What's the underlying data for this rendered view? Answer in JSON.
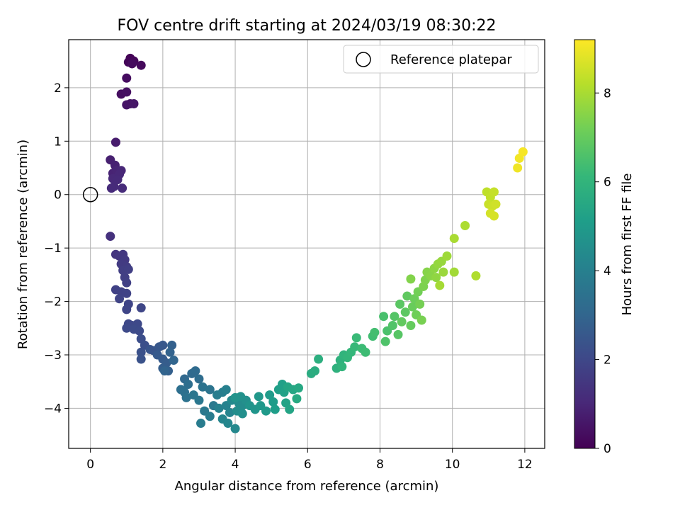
{
  "chart_data": {
    "type": "scatter",
    "title": "FOV centre drift starting at 2024/03/19 08:30:22",
    "xlabel": "Angular distance from reference (arcmin)",
    "ylabel": "Rotation from reference (arcmin)",
    "xlim": [
      -0.6,
      12.55
    ],
    "ylim": [
      -4.75,
      2.9
    ],
    "x_ticks": [
      0,
      2,
      4,
      6,
      8,
      10,
      12
    ],
    "x_tick_labels": [
      "0",
      "2",
      "4",
      "6",
      "8",
      "10",
      "12"
    ],
    "y_ticks": [
      -4,
      -3,
      -2,
      -1,
      0,
      1,
      2
    ],
    "y_tick_labels": [
      "−4",
      "−3",
      "−2",
      "−1",
      "0",
      "1",
      "2"
    ],
    "grid": true,
    "legend": {
      "position": "top-right",
      "entries": [
        "Reference platepar"
      ]
    },
    "reference_point": {
      "x": 0,
      "y": 0,
      "marker": "open-circle",
      "color": "#000000"
    },
    "colorbar": {
      "label": "Hours from first FF file",
      "range": [
        0,
        9.2
      ],
      "ticks": [
        0,
        2,
        4,
        6,
        8
      ],
      "tick_labels": [
        "0",
        "2",
        "4",
        "6",
        "8"
      ],
      "colormap": "viridis"
    },
    "colormap_stops": [
      "#440154",
      "#482878",
      "#3e4989",
      "#31688e",
      "#26828e",
      "#1f9e89",
      "#35b779",
      "#6ece58",
      "#b5de2b",
      "#fde725"
    ],
    "series": [
      {
        "marker": "filled-circle",
        "points": [
          [
            1.1,
            2.55,
            0.05
          ],
          [
            1.05,
            2.48,
            0.1
          ],
          [
            1.2,
            2.5,
            0.15
          ],
          [
            1.4,
            2.42,
            0.2
          ],
          [
            1.15,
            2.45,
            0.25
          ],
          [
            1.0,
            2.18,
            0.3
          ],
          [
            0.85,
            1.88,
            0.35
          ],
          [
            1.0,
            1.92,
            0.4
          ],
          [
            1.1,
            1.7,
            0.45
          ],
          [
            1.0,
            1.68,
            0.5
          ],
          [
            1.2,
            1.7,
            0.55
          ],
          [
            0.7,
            0.98,
            0.7
          ],
          [
            0.55,
            0.65,
            0.8
          ],
          [
            0.68,
            0.55,
            0.85
          ],
          [
            0.62,
            0.4,
            0.9
          ],
          [
            0.72,
            0.45,
            0.95
          ],
          [
            0.85,
            0.45,
            1.0
          ],
          [
            0.8,
            0.38,
            1.02
          ],
          [
            0.62,
            0.3,
            1.05
          ],
          [
            0.75,
            0.28,
            1.08
          ],
          [
            0.65,
            0.15,
            1.1
          ],
          [
            0.58,
            0.12,
            1.12
          ],
          [
            0.88,
            0.12,
            1.15
          ],
          [
            0.55,
            -0.78,
            1.3
          ],
          [
            0.7,
            -1.12,
            1.4
          ],
          [
            0.8,
            -1.15,
            1.45
          ],
          [
            0.9,
            -1.12,
            1.5
          ],
          [
            0.95,
            -1.22,
            1.55
          ],
          [
            0.85,
            -1.3,
            1.6
          ],
          [
            1.0,
            -1.35,
            1.65
          ],
          [
            0.9,
            -1.42,
            1.7
          ],
          [
            1.05,
            -1.4,
            1.72
          ],
          [
            0.95,
            -1.55,
            1.75
          ],
          [
            1.0,
            -1.65,
            1.78
          ],
          [
            0.7,
            -1.78,
            1.8
          ],
          [
            0.85,
            -1.82,
            1.82
          ],
          [
            1.0,
            -1.85,
            1.85
          ],
          [
            0.8,
            -1.95,
            1.88
          ],
          [
            1.05,
            -2.05,
            1.9
          ],
          [
            1.0,
            -2.15,
            1.92
          ],
          [
            1.4,
            -2.12,
            1.95
          ],
          [
            1.05,
            -2.42,
            2.0
          ],
          [
            1.15,
            -2.45,
            2.02
          ],
          [
            1.3,
            -2.42,
            2.05
          ],
          [
            1.0,
            -2.5,
            2.08
          ],
          [
            1.2,
            -2.52,
            2.1
          ],
          [
            1.35,
            -2.55,
            2.12
          ],
          [
            1.4,
            -2.7,
            2.2
          ],
          [
            1.5,
            -2.82,
            2.25
          ],
          [
            1.4,
            -2.95,
            2.3
          ],
          [
            1.4,
            -3.08,
            2.35
          ],
          [
            1.65,
            -2.9,
            2.4
          ],
          [
            1.75,
            -2.92,
            2.45
          ],
          [
            1.9,
            -2.85,
            2.5
          ],
          [
            2.0,
            -2.82,
            2.55
          ],
          [
            1.85,
            -3.0,
            2.6
          ],
          [
            2.0,
            -3.08,
            2.65
          ],
          [
            2.1,
            -3.15,
            2.7
          ],
          [
            2.0,
            -3.25,
            2.75
          ],
          [
            2.15,
            -3.3,
            2.8
          ],
          [
            2.25,
            -2.82,
            2.85
          ],
          [
            2.2,
            -2.95,
            2.9
          ],
          [
            2.05,
            -3.3,
            2.95
          ],
          [
            2.3,
            -3.1,
            3.0
          ],
          [
            2.6,
            -3.45,
            3.1
          ],
          [
            2.8,
            -3.35,
            3.15
          ],
          [
            2.9,
            -3.3,
            3.2
          ],
          [
            3.0,
            -3.45,
            3.25
          ],
          [
            2.7,
            -3.55,
            3.3
          ],
          [
            2.5,
            -3.65,
            3.35
          ],
          [
            2.6,
            -3.7,
            3.4
          ],
          [
            2.65,
            -3.8,
            3.45
          ],
          [
            3.1,
            -3.6,
            3.5
          ],
          [
            3.3,
            -3.65,
            3.55
          ],
          [
            2.85,
            -3.75,
            3.6
          ],
          [
            3.0,
            -3.85,
            3.65
          ],
          [
            3.15,
            -4.05,
            3.7
          ],
          [
            3.4,
            -3.95,
            3.75
          ],
          [
            3.3,
            -4.15,
            3.8
          ],
          [
            3.05,
            -4.28,
            3.85
          ],
          [
            3.5,
            -3.75,
            3.9
          ],
          [
            3.65,
            -3.7,
            3.95
          ],
          [
            3.75,
            -3.65,
            4.0
          ],
          [
            3.55,
            -4.0,
            4.05
          ],
          [
            3.75,
            -3.95,
            4.1
          ],
          [
            3.85,
            -4.08,
            4.15
          ],
          [
            3.65,
            -4.2,
            4.2
          ],
          [
            3.8,
            -4.28,
            4.25
          ],
          [
            4.0,
            -4.38,
            4.3
          ],
          [
            3.9,
            -3.85,
            4.35
          ],
          [
            4.1,
            -3.9,
            4.4
          ],
          [
            4.2,
            -3.95,
            4.45
          ],
          [
            4.05,
            -4.05,
            4.5
          ],
          [
            4.2,
            -4.1,
            4.55
          ],
          [
            4.3,
            -3.85,
            4.6
          ],
          [
            4.15,
            -3.78,
            4.65
          ],
          [
            4.0,
            -3.8,
            4.7
          ],
          [
            4.4,
            -3.95,
            4.75
          ],
          [
            4.55,
            -4.02,
            4.8
          ],
          [
            4.65,
            -3.78,
            4.85
          ],
          [
            4.7,
            -3.95,
            4.9
          ],
          [
            4.85,
            -4.05,
            4.95
          ],
          [
            4.95,
            -3.75,
            5.0
          ],
          [
            5.05,
            -3.88,
            5.05
          ],
          [
            5.1,
            -4.02,
            5.1
          ],
          [
            5.2,
            -3.65,
            5.15
          ],
          [
            5.3,
            -3.55,
            5.2
          ],
          [
            5.35,
            -3.7,
            5.25
          ],
          [
            5.4,
            -3.9,
            5.3
          ],
          [
            5.5,
            -4.02,
            5.35
          ],
          [
            5.45,
            -3.6,
            5.4
          ],
          [
            5.6,
            -3.65,
            5.45
          ],
          [
            5.75,
            -3.62,
            5.5
          ],
          [
            5.7,
            -3.82,
            5.55
          ],
          [
            6.1,
            -3.35,
            5.65
          ],
          [
            6.2,
            -3.3,
            5.7
          ],
          [
            6.3,
            -3.08,
            5.75
          ],
          [
            6.8,
            -3.25,
            5.85
          ],
          [
            6.9,
            -3.1,
            5.9
          ],
          [
            7.0,
            -3.0,
            5.95
          ],
          [
            6.95,
            -3.22,
            6.0
          ],
          [
            7.1,
            -3.05,
            6.05
          ],
          [
            7.2,
            -2.95,
            6.1
          ],
          [
            7.3,
            -2.85,
            6.15
          ],
          [
            7.35,
            -2.68,
            6.2
          ],
          [
            7.5,
            -2.88,
            6.25
          ],
          [
            7.6,
            -2.95,
            6.3
          ],
          [
            7.8,
            -2.65,
            6.35
          ],
          [
            7.85,
            -2.58,
            6.4
          ],
          [
            8.1,
            -2.28,
            6.5
          ],
          [
            8.2,
            -2.55,
            6.55
          ],
          [
            8.15,
            -2.75,
            6.6
          ],
          [
            8.35,
            -2.45,
            6.65
          ],
          [
            8.4,
            -2.28,
            6.7
          ],
          [
            8.5,
            -2.62,
            6.75
          ],
          [
            8.55,
            -2.05,
            6.8
          ],
          [
            8.7,
            -2.2,
            6.85
          ],
          [
            8.75,
            -1.9,
            6.9
          ],
          [
            8.6,
            -2.38,
            6.95
          ],
          [
            8.85,
            -2.45,
            7.0
          ],
          [
            8.9,
            -2.1,
            7.05
          ],
          [
            8.95,
            -1.95,
            7.1
          ],
          [
            9.0,
            -2.25,
            7.15
          ],
          [
            9.05,
            -1.82,
            7.2
          ],
          [
            9.1,
            -2.05,
            7.25
          ],
          [
            9.15,
            -2.35,
            7.3
          ],
          [
            9.2,
            -1.72,
            7.35
          ],
          [
            9.25,
            -1.6,
            7.4
          ],
          [
            8.85,
            -1.58,
            7.45
          ],
          [
            9.3,
            -1.45,
            7.5
          ],
          [
            9.4,
            -1.52,
            7.55
          ],
          [
            9.5,
            -1.38,
            7.6
          ],
          [
            9.55,
            -1.55,
            7.65
          ],
          [
            9.6,
            -1.3,
            7.7
          ],
          [
            9.7,
            -1.25,
            7.75
          ],
          [
            9.75,
            -1.45,
            7.8
          ],
          [
            9.85,
            -1.15,
            7.85
          ],
          [
            10.05,
            -1.45,
            7.9
          ],
          [
            9.65,
            -1.7,
            7.95
          ],
          [
            10.05,
            -0.82,
            8.0
          ],
          [
            10.35,
            -0.58,
            8.05
          ],
          [
            10.65,
            -1.52,
            8.1
          ],
          [
            10.95,
            0.05,
            8.3
          ],
          [
            11.05,
            -0.05,
            8.35
          ],
          [
            11.15,
            0.05,
            8.4
          ],
          [
            11.0,
            -0.18,
            8.45
          ],
          [
            11.1,
            -0.22,
            8.5
          ],
          [
            11.2,
            -0.18,
            8.55
          ],
          [
            11.05,
            -0.35,
            8.6
          ],
          [
            11.15,
            -0.4,
            8.65
          ],
          [
            11.8,
            0.5,
            9.0
          ],
          [
            11.85,
            0.68,
            9.05
          ],
          [
            11.95,
            0.8,
            9.1
          ]
        ]
      }
    ]
  }
}
